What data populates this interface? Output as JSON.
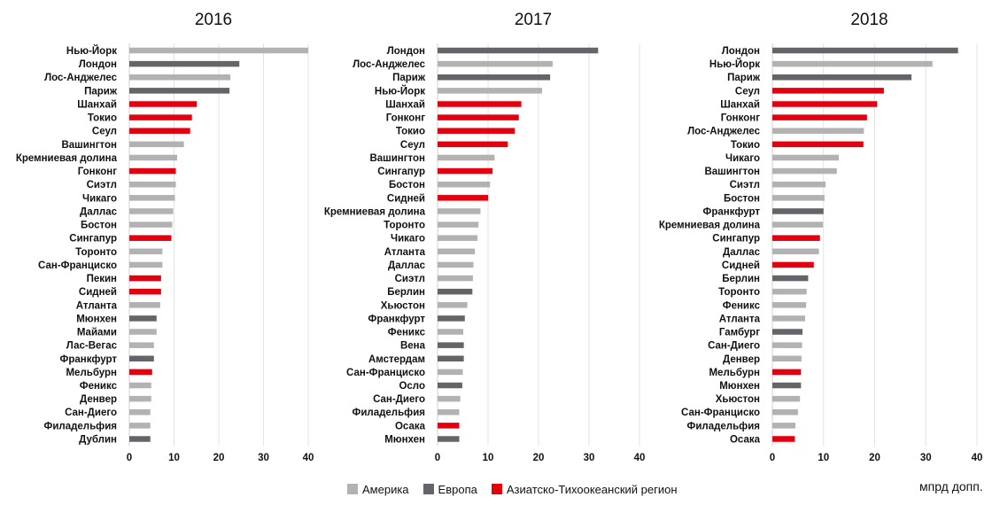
{
  "colors": {
    "america": "#b2b2b2",
    "europe": "#646469",
    "apac": "#e3000f",
    "grid": "#e3e3e3"
  },
  "unit_label": "мпрд допп.",
  "legend": [
    {
      "key": "america",
      "label": "Америка"
    },
    {
      "key": "europe",
      "label": "Европа"
    },
    {
      "key": "apac",
      "label": "Азиатско-Тихоокеанский регион"
    }
  ],
  "chart_data": [
    {
      "type": "bar",
      "orientation": "horizontal",
      "title": "2016",
      "xlim": [
        0,
        40
      ],
      "xticks": [
        0,
        10,
        20,
        30,
        40
      ],
      "grid": true,
      "bars": [
        {
          "city": "Нью-Йорк",
          "value": 40.0,
          "region": "america"
        },
        {
          "city": "Лондон",
          "value": 24.6,
          "region": "europe"
        },
        {
          "city": "Лос-Анджелес",
          "value": 22.6,
          "region": "america"
        },
        {
          "city": "Париж",
          "value": 22.4,
          "region": "europe"
        },
        {
          "city": "Шанхай",
          "value": 15.1,
          "region": "apac"
        },
        {
          "city": "Токио",
          "value": 14.0,
          "region": "apac"
        },
        {
          "city": "Сеул",
          "value": 13.6,
          "region": "apac"
        },
        {
          "city": "Вашингтон",
          "value": 12.2,
          "region": "america"
        },
        {
          "city": "Кремниевая долина",
          "value": 10.7,
          "region": "america"
        },
        {
          "city": "Гонконг",
          "value": 10.4,
          "region": "apac"
        },
        {
          "city": "Сиэтл",
          "value": 10.4,
          "region": "america"
        },
        {
          "city": "Чикаго",
          "value": 10.2,
          "region": "america"
        },
        {
          "city": "Даллас",
          "value": 9.8,
          "region": "america"
        },
        {
          "city": "Бостон",
          "value": 9.6,
          "region": "america"
        },
        {
          "city": "Сингапур",
          "value": 9.4,
          "region": "apac"
        },
        {
          "city": "Торонто",
          "value": 7.4,
          "region": "america"
        },
        {
          "city": "Сан-Франциско",
          "value": 7.4,
          "region": "america"
        },
        {
          "city": "Пекин",
          "value": 7.1,
          "region": "apac"
        },
        {
          "city": "Сидней",
          "value": 7.1,
          "region": "apac"
        },
        {
          "city": "Атланта",
          "value": 6.9,
          "region": "america"
        },
        {
          "city": "Мюнхен",
          "value": 6.1,
          "region": "europe"
        },
        {
          "city": "Майами",
          "value": 6.1,
          "region": "america"
        },
        {
          "city": "Лас-Вегас",
          "value": 5.5,
          "region": "america"
        },
        {
          "city": "Франкфурт",
          "value": 5.5,
          "region": "europe"
        },
        {
          "city": "Мельбурн",
          "value": 5.1,
          "region": "apac"
        },
        {
          "city": "Феникс",
          "value": 4.9,
          "region": "america"
        },
        {
          "city": "Денвер",
          "value": 4.9,
          "region": "america"
        },
        {
          "city": "Сан-Диего",
          "value": 4.7,
          "region": "america"
        },
        {
          "city": "Филадельфия",
          "value": 4.7,
          "region": "america"
        },
        {
          "city": "Дублин",
          "value": 4.7,
          "region": "europe"
        }
      ]
    },
    {
      "type": "bar",
      "orientation": "horizontal",
      "title": "2017",
      "xlim": [
        0,
        40
      ],
      "xticks": [
        0,
        10,
        20,
        30,
        40
      ],
      "grid": true,
      "bars": [
        {
          "city": "Лондон",
          "value": 31.8,
          "region": "europe"
        },
        {
          "city": "Лос-Анджелес",
          "value": 22.8,
          "region": "america"
        },
        {
          "city": "Париж",
          "value": 22.3,
          "region": "europe"
        },
        {
          "city": "Нью-Йорк",
          "value": 20.7,
          "region": "america"
        },
        {
          "city": "Шанхай",
          "value": 16.6,
          "region": "apac"
        },
        {
          "city": "Гонконг",
          "value": 16.1,
          "region": "apac"
        },
        {
          "city": "Токио",
          "value": 15.3,
          "region": "apac"
        },
        {
          "city": "Сеул",
          "value": 13.9,
          "region": "apac"
        },
        {
          "city": "Вашингтон",
          "value": 11.3,
          "region": "america"
        },
        {
          "city": "Сингапур",
          "value": 10.9,
          "region": "apac"
        },
        {
          "city": "Бостон",
          "value": 10.4,
          "region": "america"
        },
        {
          "city": "Сидней",
          "value": 10.0,
          "region": "apac"
        },
        {
          "city": "Кремниевая долина",
          "value": 8.5,
          "region": "america"
        },
        {
          "city": "Торонто",
          "value": 8.1,
          "region": "america"
        },
        {
          "city": "Чикаго",
          "value": 7.9,
          "region": "america"
        },
        {
          "city": "Атланта",
          "value": 7.4,
          "region": "america"
        },
        {
          "city": "Даллас",
          "value": 7.1,
          "region": "america"
        },
        {
          "city": "Сиэтл",
          "value": 7.0,
          "region": "america"
        },
        {
          "city": "Берлин",
          "value": 6.9,
          "region": "europe"
        },
        {
          "city": "Хьюстон",
          "value": 5.9,
          "region": "america"
        },
        {
          "city": "Франкфурт",
          "value": 5.4,
          "region": "europe"
        },
        {
          "city": "Феникс",
          "value": 5.1,
          "region": "america"
        },
        {
          "city": "Вена",
          "value": 5.2,
          "region": "europe"
        },
        {
          "city": "Амстердам",
          "value": 5.2,
          "region": "europe"
        },
        {
          "city": "Сан-Франциско",
          "value": 5.0,
          "region": "america"
        },
        {
          "city": "Осло",
          "value": 4.9,
          "region": "europe"
        },
        {
          "city": "Сан-Диего",
          "value": 4.5,
          "region": "america"
        },
        {
          "city": "Филадельфия",
          "value": 4.3,
          "region": "america"
        },
        {
          "city": "Осака",
          "value": 4.3,
          "region": "apac"
        },
        {
          "city": "Мюнхен",
          "value": 4.3,
          "region": "europe"
        }
      ]
    },
    {
      "type": "bar",
      "orientation": "horizontal",
      "title": "2018",
      "xlim": [
        0,
        40
      ],
      "xticks": [
        0,
        10,
        20,
        30,
        40
      ],
      "grid": true,
      "bars": [
        {
          "city": "Лондон",
          "value": 36.3,
          "region": "europe"
        },
        {
          "city": "Нью-Йорк",
          "value": 31.3,
          "region": "america"
        },
        {
          "city": "Париж",
          "value": 27.2,
          "region": "europe"
        },
        {
          "city": "Сеул",
          "value": 21.8,
          "region": "apac"
        },
        {
          "city": "Шанхай",
          "value": 20.5,
          "region": "apac"
        },
        {
          "city": "Гонконг",
          "value": 18.5,
          "region": "apac"
        },
        {
          "city": "Лос-Анджелес",
          "value": 17.9,
          "region": "america"
        },
        {
          "city": "Токио",
          "value": 17.8,
          "region": "apac"
        },
        {
          "city": "Чикаго",
          "value": 13.0,
          "region": "america"
        },
        {
          "city": "Вашингтон",
          "value": 12.6,
          "region": "america"
        },
        {
          "city": "Сиэтл",
          "value": 10.4,
          "region": "america"
        },
        {
          "city": "Бостон",
          "value": 10.2,
          "region": "america"
        },
        {
          "city": "Франкфурт",
          "value": 10.0,
          "region": "europe"
        },
        {
          "city": "Кремниевая долина",
          "value": 9.9,
          "region": "america"
        },
        {
          "city": "Сингапур",
          "value": 9.3,
          "region": "apac"
        },
        {
          "city": "Даллас",
          "value": 9.1,
          "region": "america"
        },
        {
          "city": "Сидней",
          "value": 8.1,
          "region": "apac"
        },
        {
          "city": "Берлин",
          "value": 7.0,
          "region": "europe"
        },
        {
          "city": "Торонто",
          "value": 6.7,
          "region": "america"
        },
        {
          "city": "Феникс",
          "value": 6.6,
          "region": "america"
        },
        {
          "city": "Атланта",
          "value": 6.4,
          "region": "america"
        },
        {
          "city": "Гамбург",
          "value": 5.9,
          "region": "europe"
        },
        {
          "city": "Сан-Диего",
          "value": 5.8,
          "region": "america"
        },
        {
          "city": "Денвер",
          "value": 5.7,
          "region": "america"
        },
        {
          "city": "Мельбурн",
          "value": 5.6,
          "region": "apac"
        },
        {
          "city": "Мюнхен",
          "value": 5.6,
          "region": "europe"
        },
        {
          "city": "Хьюстон",
          "value": 5.4,
          "region": "america"
        },
        {
          "city": "Сан-Франциско",
          "value": 5.0,
          "region": "america"
        },
        {
          "city": "Филадельфия",
          "value": 4.5,
          "region": "america"
        },
        {
          "city": "Осака",
          "value": 4.4,
          "region": "apac"
        }
      ]
    }
  ]
}
